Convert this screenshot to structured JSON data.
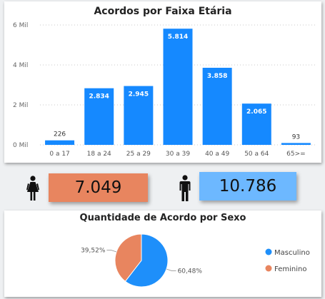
{
  "colors": {
    "bar": "#1589FF",
    "female_kpi": "#E8855F",
    "male_kpi": "#6DB8FF",
    "pie_masc": "#1E8FFA",
    "pie_fem": "#E8855F"
  },
  "icons": {
    "female": "female-person-icon",
    "male": "male-person-icon"
  },
  "kpis": {
    "female": {
      "value": "7.049"
    },
    "male": {
      "value": "10.786"
    }
  },
  "chart_data": [
    {
      "type": "bar",
      "title": "Acordos por Faixa Etária",
      "categories": [
        "0 a 17",
        "18 a 24",
        "25 a 29",
        "30 a 39",
        "40 a 49",
        "50 a 64",
        "65>="
      ],
      "values": [
        226,
        2834,
        2945,
        5814,
        3858,
        2065,
        93
      ],
      "value_labels": [
        "226",
        "2.834",
        "2.945",
        "5.814",
        "3.858",
        "2.065",
        "93"
      ],
      "yticks": [
        0,
        2000,
        4000,
        6000
      ],
      "ytick_labels": [
        "0 Mil",
        "2 Mil",
        "4 Mil",
        "6 Mil"
      ],
      "ylim": [
        0,
        6000
      ],
      "grid": true,
      "xlabel": "",
      "ylabel": ""
    },
    {
      "type": "pie",
      "title": "Quantidade de Acordo por Sexo",
      "labels": [
        "Masculino",
        "Feminino"
      ],
      "values": [
        60.48,
        39.52
      ],
      "value_labels": [
        "60,48%",
        "39,52%"
      ],
      "legend_position": "right"
    }
  ]
}
